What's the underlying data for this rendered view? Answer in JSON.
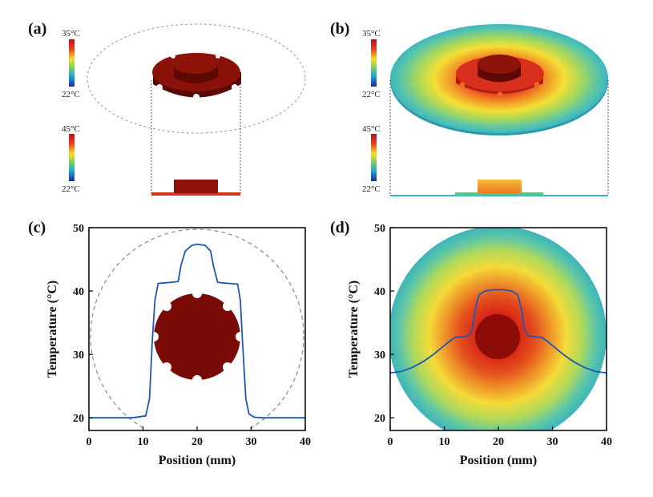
{
  "panels": {
    "a": {
      "label": "(a)",
      "top_scale": {
        "max": "35°C",
        "min": "22°C"
      },
      "bottom_scale": {
        "max": "45°C",
        "min": "22°C"
      }
    },
    "b": {
      "label": "(b)",
      "top_scale": {
        "max": "35°C",
        "min": "22°C"
      },
      "bottom_scale": {
        "max": "45°C",
        "min": "22°C"
      }
    },
    "c": {
      "label": "(c)"
    },
    "d": {
      "label": "(d)"
    }
  },
  "colors": {
    "line": "#1f56b4",
    "device": "#7a0a05",
    "disk_edge": "#3cb4bc"
  },
  "chart_data": [
    {
      "type": "line",
      "panel": "c",
      "xlabel": "Position (mm)",
      "ylabel": "Temperature (°C)",
      "xlim": [
        0,
        40
      ],
      "ylim": [
        18,
        50
      ],
      "x_ticks": [
        0,
        10,
        20,
        30,
        40
      ],
      "y_ticks": [
        20,
        30,
        40,
        50
      ],
      "series": [
        {
          "x": [
            0,
            8,
            10.5,
            11.2,
            11.7,
            12.2,
            12.8,
            14,
            15.5,
            16.5,
            17,
            17.8,
            19,
            20,
            21.5,
            22.5,
            23,
            23.8,
            24.5,
            26,
            27.5,
            28,
            28.4,
            29,
            29.6,
            30.5,
            32,
            40
          ],
          "y": [
            20,
            20,
            20.3,
            23,
            32,
            38.5,
            41.2,
            41.3,
            41.4,
            41.5,
            44,
            46.3,
            47.2,
            47.4,
            47.2,
            46.3,
            44,
            41.4,
            41.3,
            41.2,
            41.1,
            38.5,
            32,
            23,
            20.6,
            20.1,
            20,
            20
          ]
        }
      ]
    },
    {
      "type": "line",
      "panel": "d",
      "xlabel": "Position (mm)",
      "ylabel": "Temperature (°C)",
      "xlim": [
        0,
        40
      ],
      "ylim": [
        18,
        50
      ],
      "x_ticks": [
        0,
        10,
        20,
        30,
        40
      ],
      "y_ticks": [
        20,
        30,
        40,
        50
      ],
      "series": [
        {
          "x": [
            0,
            2,
            4,
            6,
            8,
            10,
            11,
            12,
            13.5,
            14.5,
            15.2,
            15.7,
            16.4,
            17.5,
            19,
            20,
            21,
            22.5,
            23.6,
            24.3,
            24.8,
            25.5,
            26.5,
            28,
            29,
            30,
            32,
            34,
            36,
            38,
            40
          ],
          "y": [
            27.1,
            27.3,
            27.9,
            28.8,
            30,
            31.4,
            32.1,
            32.7,
            32.8,
            32.9,
            34,
            37,
            39.4,
            40,
            40.2,
            40.2,
            40.2,
            40,
            39.4,
            37,
            34,
            32.9,
            32.8,
            32.7,
            32.1,
            31.4,
            30,
            28.8,
            27.9,
            27.3,
            27.1
          ]
        }
      ]
    }
  ]
}
